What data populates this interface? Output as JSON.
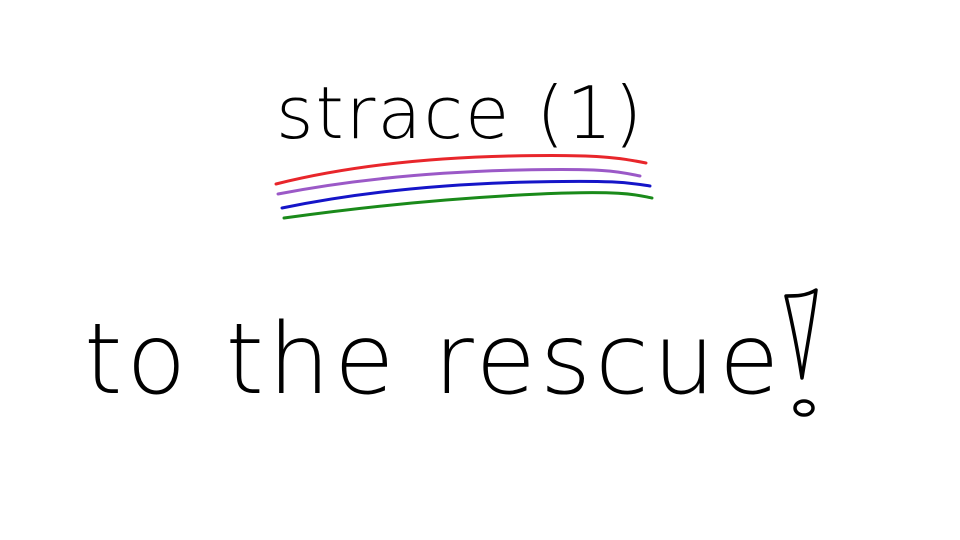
{
  "slide": {
    "title": "strace (1)",
    "headline": "to the rescue"
  },
  "colors": {
    "ink": "#000000",
    "underline_red": "#e8262b",
    "underline_purple": "#9b59c7",
    "underline_blue": "#1515c8",
    "underline_green": "#1a8a1a"
  }
}
